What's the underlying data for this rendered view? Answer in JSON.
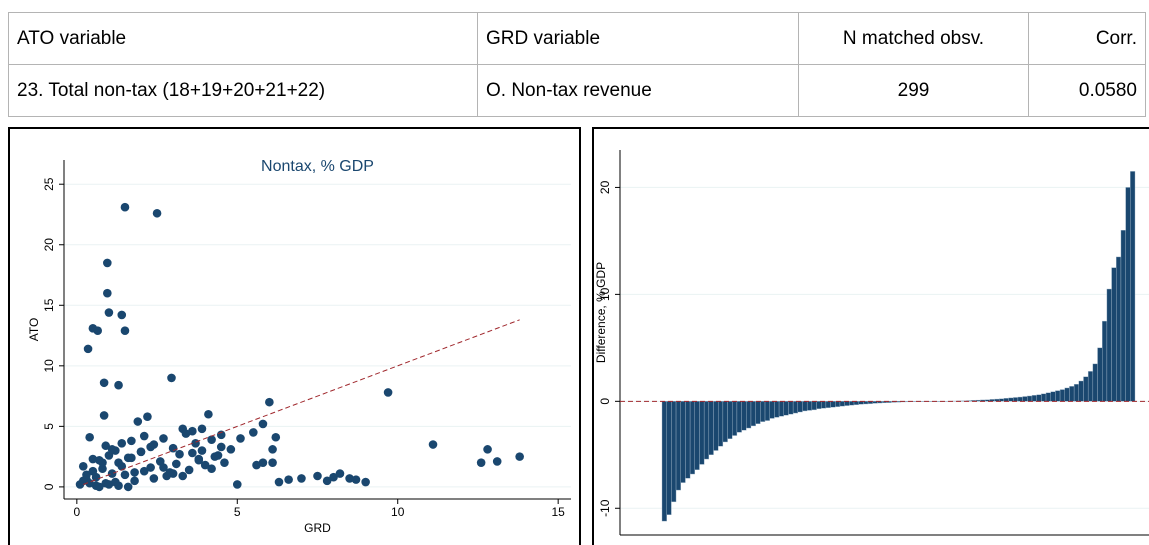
{
  "table": {
    "header": [
      "ATO variable",
      "GRD variable",
      "N matched obsv.",
      "Corr."
    ],
    "rows": [
      [
        "23. Total non-tax (18+19+20+21+22)",
        "O. Non-tax revenue",
        "299",
        "0.0580"
      ]
    ]
  },
  "chart_data": [
    {
      "type": "scatter",
      "title": "Nontax, % GDP",
      "xlabel": "GRD",
      "ylabel": "ATO",
      "color": "#1a476f",
      "xlim": [
        -0.4,
        15.4
      ],
      "ylim": [
        -1,
        27
      ],
      "xticks": [
        0,
        5,
        10,
        15
      ],
      "yticks": [
        0,
        5,
        10,
        15,
        20,
        25
      ],
      "grid": true,
      "diagonal": {
        "x": [
          0.2,
          13.8
        ],
        "y": [
          0.2,
          13.8
        ],
        "color": "#a0282d"
      },
      "x": [
        1.5,
        2.5,
        0.95,
        0.95,
        1.4,
        1.5,
        1.0,
        0.5,
        0.65,
        0.35,
        2.95,
        0.85,
        1.3,
        9.7,
        6.0,
        0.85,
        11.1,
        12.8,
        13.8,
        12.6,
        13.1,
        6.3,
        6.6,
        7.0,
        7.5,
        8.0,
        8.2,
        8.5,
        9.0,
        8.7,
        7.8,
        5.0,
        5.6,
        5.8,
        6.1,
        5.5,
        5.8,
        6.2,
        6.1,
        4.1,
        2.2,
        1.9,
        3.3,
        3.6,
        0.4,
        0.1,
        0.2,
        0.3,
        0.5,
        0.6,
        0.7,
        0.8,
        0.9,
        1.0,
        1.1,
        1.2,
        1.3,
        1.4,
        1.6,
        1.7,
        1.8,
        2.0,
        2.1,
        2.3,
        2.4,
        2.6,
        2.7,
        2.8,
        3.0,
        3.1,
        3.2,
        3.4,
        3.5,
        3.7,
        3.8,
        3.9,
        4.0,
        4.2,
        4.3,
        4.5,
        4.6,
        4.8,
        5.1,
        0.3,
        0.6,
        0.9,
        1.2,
        1.5,
        1.8,
        2.1,
        2.4,
        2.7,
        3.0,
        3.3,
        3.6,
        3.9,
        4.2,
        4.5,
        0.2,
        0.5,
        0.8,
        1.1,
        1.4,
        1.7,
        2.0,
        2.3,
        0.4,
        0.7,
        1.0,
        1.3,
        1.6,
        4.4,
        3.8,
        2.9
      ],
      "y": [
        23.1,
        22.6,
        18.5,
        16.0,
        14.2,
        12.9,
        14.4,
        13.1,
        12.9,
        11.4,
        9.0,
        8.6,
        8.4,
        7.8,
        7.0,
        5.9,
        3.5,
        3.1,
        2.5,
        2.0,
        2.1,
        0.4,
        0.6,
        0.7,
        0.9,
        0.8,
        1.1,
        0.7,
        0.4,
        0.6,
        0.5,
        0.2,
        1.8,
        2.0,
        2.0,
        4.5,
        5.2,
        4.1,
        3.1,
        6.0,
        5.8,
        5.4,
        4.8,
        4.6,
        4.1,
        0.2,
        0.5,
        1.0,
        1.3,
        0.8,
        2.2,
        1.5,
        3.4,
        2.6,
        1.1,
        3.0,
        2.0,
        1.7,
        2.4,
        3.8,
        1.2,
        2.9,
        4.2,
        1.6,
        3.5,
        2.1,
        4.0,
        0.9,
        3.2,
        1.9,
        2.7,
        4.4,
        1.4,
        3.6,
        2.3,
        4.8,
        1.8,
        3.9,
        2.5,
        4.3,
        2.0,
        3.1,
        4.0,
        0.6,
        0.1,
        0.3,
        0.4,
        1.0,
        0.5,
        1.3,
        0.7,
        1.6,
        1.1,
        0.9,
        2.8,
        3.0,
        1.5,
        3.3,
        1.7,
        2.3,
        2.0,
        3.1,
        3.6,
        2.4,
        2.9,
        3.3,
        0.3,
        0.0,
        0.2,
        0.1,
        0.0,
        2.6,
        2.2,
        1.2
      ]
    },
    {
      "type": "bar",
      "ylabel": "Difference, % GDP",
      "color": "#1a476f",
      "ylim": [
        -12.5,
        23.5
      ],
      "yticks": [
        -10,
        0,
        10,
        20
      ],
      "grid": true,
      "zero_line_color": "#a0282d",
      "values": [
        -11.2,
        -10.6,
        -9.4,
        -8.3,
        -7.6,
        -7.2,
        -6.8,
        -6.4,
        -5.9,
        -5.4,
        -5.0,
        -4.6,
        -4.2,
        -3.8,
        -3.5,
        -3.2,
        -2.9,
        -2.7,
        -2.5,
        -2.3,
        -2.1,
        -1.9,
        -1.8,
        -1.6,
        -1.5,
        -1.4,
        -1.3,
        -1.2,
        -1.1,
        -1.0,
        -0.9,
        -0.85,
        -0.8,
        -0.7,
        -0.65,
        -0.6,
        -0.55,
        -0.5,
        -0.45,
        -0.4,
        -0.36,
        -0.32,
        -0.28,
        -0.25,
        -0.22,
        -0.19,
        -0.16,
        -0.14,
        -0.12,
        -0.1,
        -0.08,
        -0.06,
        -0.05,
        -0.04,
        -0.03,
        -0.02,
        -0.01,
        0,
        0,
        0,
        0.01,
        0.02,
        0.03,
        0.04,
        0.05,
        0.07,
        0.09,
        0.11,
        0.13,
        0.15,
        0.18,
        0.21,
        0.24,
        0.28,
        0.32,
        0.36,
        0.4,
        0.45,
        0.5,
        0.56,
        0.62,
        0.7,
        0.8,
        0.9,
        1.0,
        1.1,
        1.25,
        1.4,
        1.6,
        1.9,
        2.3,
        2.8,
        3.5,
        5.0,
        7.5,
        10.5,
        12.5,
        13.5,
        16,
        20,
        21.5
      ]
    }
  ]
}
